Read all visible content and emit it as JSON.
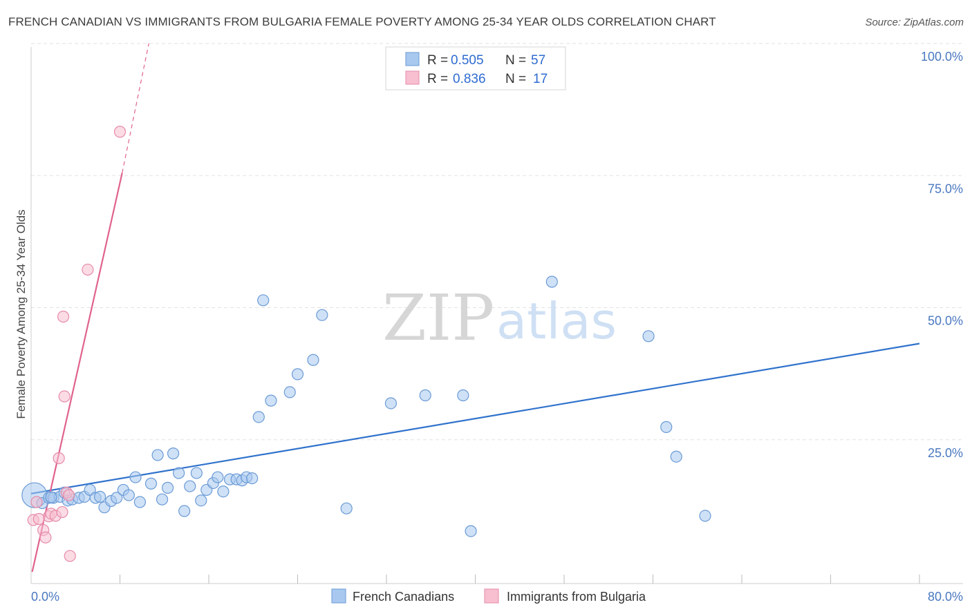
{
  "title": "FRENCH CANADIAN VS IMMIGRANTS FROM BULGARIA FEMALE POVERTY AMONG 25-34 YEAR OLDS CORRELATION CHART",
  "source": "Source: ZipAtlas.com",
  "watermark": {
    "zip": "ZIP",
    "atlas": "atlas"
  },
  "legend": {
    "rows": [
      {
        "r_label": "R = ",
        "r_value": "0.505",
        "n_label": "N = ",
        "n_value": "57",
        "color": "#a8c8ef",
        "stroke": "#6a9ad6"
      },
      {
        "r_label": "R = ",
        "r_value": "0.836",
        "n_label": "N = ",
        "n_value": "17",
        "color": "#f7bfd0",
        "stroke": "#e68aa8"
      }
    ]
  },
  "bottom_legend": [
    {
      "label": "French Canadians",
      "color": "#a8c8ef",
      "stroke": "#6a9ad6"
    },
    {
      "label": "Immigrants from Bulgaria",
      "color": "#f7bfd0",
      "stroke": "#e68aa8"
    }
  ],
  "chart_data": {
    "type": "scatter",
    "ylabel": "Female Poverty Among 25-34 Year Olds",
    "xlim": [
      0,
      80
    ],
    "ylim": [
      0,
      100
    ],
    "x_tick_labels": [
      {
        "value": 0,
        "label": "0.0%"
      },
      {
        "value": 80,
        "label": "80.0%"
      }
    ],
    "y_tick_labels": [
      {
        "value": 25,
        "label": "25.0%"
      },
      {
        "value": 50,
        "label": "50.0%"
      },
      {
        "value": 75,
        "label": "75.0%"
      },
      {
        "value": 100,
        "label": "100.0%"
      }
    ],
    "x_minor_ticks": [
      8,
      16,
      24,
      32,
      40,
      48,
      56,
      64,
      72,
      80
    ],
    "grid": true,
    "legend_position": "top-center",
    "series": [
      {
        "name": "French Canadians",
        "color": "#a8c8ef",
        "stroke": "#6a9ad6",
        "line_color": "#2f72cc",
        "trend": {
          "x": [
            0,
            80
          ],
          "y": [
            14.8,
            43.2
          ]
        },
        "points": [
          {
            "x": 0.3,
            "y": 14.5,
            "r": 18
          },
          {
            "x": 1.0,
            "y": 13.0
          },
          {
            "x": 1.6,
            "y": 14.0
          },
          {
            "x": 2.0,
            "y": 14.0
          },
          {
            "x": 2.6,
            "y": 14.2
          },
          {
            "x": 3.0,
            "y": 15.0
          },
          {
            "x": 3.3,
            "y": 13.5
          },
          {
            "x": 3.7,
            "y": 13.7
          },
          {
            "x": 4.3,
            "y": 14.0
          },
          {
            "x": 4.8,
            "y": 14.2
          },
          {
            "x": 5.3,
            "y": 15.5
          },
          {
            "x": 5.8,
            "y": 14.0
          },
          {
            "x": 6.2,
            "y": 14.2
          },
          {
            "x": 6.6,
            "y": 12.2
          },
          {
            "x": 7.2,
            "y": 13.4
          },
          {
            "x": 7.7,
            "y": 14.0
          },
          {
            "x": 8.3,
            "y": 15.5
          },
          {
            "x": 8.8,
            "y": 14.5
          },
          {
            "x": 9.4,
            "y": 17.9
          },
          {
            "x": 9.8,
            "y": 13.2
          },
          {
            "x": 10.8,
            "y": 16.7
          },
          {
            "x": 11.4,
            "y": 22.1
          },
          {
            "x": 11.8,
            "y": 13.7
          },
          {
            "x": 12.3,
            "y": 15.9
          },
          {
            "x": 12.8,
            "y": 22.4
          },
          {
            "x": 13.3,
            "y": 18.7
          },
          {
            "x": 13.8,
            "y": 11.5
          },
          {
            "x": 14.3,
            "y": 16.2
          },
          {
            "x": 14.9,
            "y": 18.7
          },
          {
            "x": 15.3,
            "y": 13.5
          },
          {
            "x": 15.8,
            "y": 15.5
          },
          {
            "x": 16.4,
            "y": 16.8
          },
          {
            "x": 16.8,
            "y": 17.9
          },
          {
            "x": 17.3,
            "y": 15.2
          },
          {
            "x": 17.9,
            "y": 17.5
          },
          {
            "x": 18.5,
            "y": 17.5
          },
          {
            "x": 19.0,
            "y": 17.3
          },
          {
            "x": 19.4,
            "y": 17.9
          },
          {
            "x": 19.9,
            "y": 17.7
          },
          {
            "x": 20.5,
            "y": 29.3
          },
          {
            "x": 20.9,
            "y": 51.4
          },
          {
            "x": 21.6,
            "y": 32.4
          },
          {
            "x": 23.3,
            "y": 34.0
          },
          {
            "x": 24.0,
            "y": 37.4
          },
          {
            "x": 25.4,
            "y": 40.1
          },
          {
            "x": 26.2,
            "y": 48.6
          },
          {
            "x": 28.4,
            "y": 12.0
          },
          {
            "x": 32.4,
            "y": 31.9
          },
          {
            "x": 35.5,
            "y": 33.4
          },
          {
            "x": 38.9,
            "y": 33.4
          },
          {
            "x": 39.6,
            "y": 7.7
          },
          {
            "x": 46.9,
            "y": 54.9
          },
          {
            "x": 55.6,
            "y": 44.6
          },
          {
            "x": 57.2,
            "y": 27.4
          },
          {
            "x": 58.1,
            "y": 21.8
          },
          {
            "x": 60.7,
            "y": 10.6
          },
          {
            "x": 1.8,
            "y": 14.1
          }
        ]
      },
      {
        "name": "Immigrants from Bulgaria",
        "color": "#f7bfd0",
        "stroke": "#e68aa8",
        "line_color": "#e0628e",
        "trend": {
          "x": [
            0.1,
            8.2
          ],
          "y": [
            0,
            75.5
          ]
        },
        "trend_dashed": {
          "x": [
            8.2,
            10.6
          ],
          "y": [
            75.5,
            100
          ]
        },
        "points": [
          {
            "x": 0.2,
            "y": 9.8
          },
          {
            "x": 0.5,
            "y": 13.2
          },
          {
            "x": 0.7,
            "y": 10.0
          },
          {
            "x": 1.1,
            "y": 7.9
          },
          {
            "x": 1.3,
            "y": 6.5
          },
          {
            "x": 1.6,
            "y": 10.5
          },
          {
            "x": 1.8,
            "y": 11.0
          },
          {
            "x": 2.2,
            "y": 10.6
          },
          {
            "x": 2.5,
            "y": 21.5
          },
          {
            "x": 2.8,
            "y": 11.3
          },
          {
            "x": 3.0,
            "y": 33.2
          },
          {
            "x": 3.2,
            "y": 15.0
          },
          {
            "x": 3.4,
            "y": 14.5
          },
          {
            "x": 2.9,
            "y": 48.3
          },
          {
            "x": 3.5,
            "y": 3.0
          },
          {
            "x": 5.1,
            "y": 57.2
          },
          {
            "x": 8.0,
            "y": 83.3
          }
        ]
      }
    ]
  }
}
